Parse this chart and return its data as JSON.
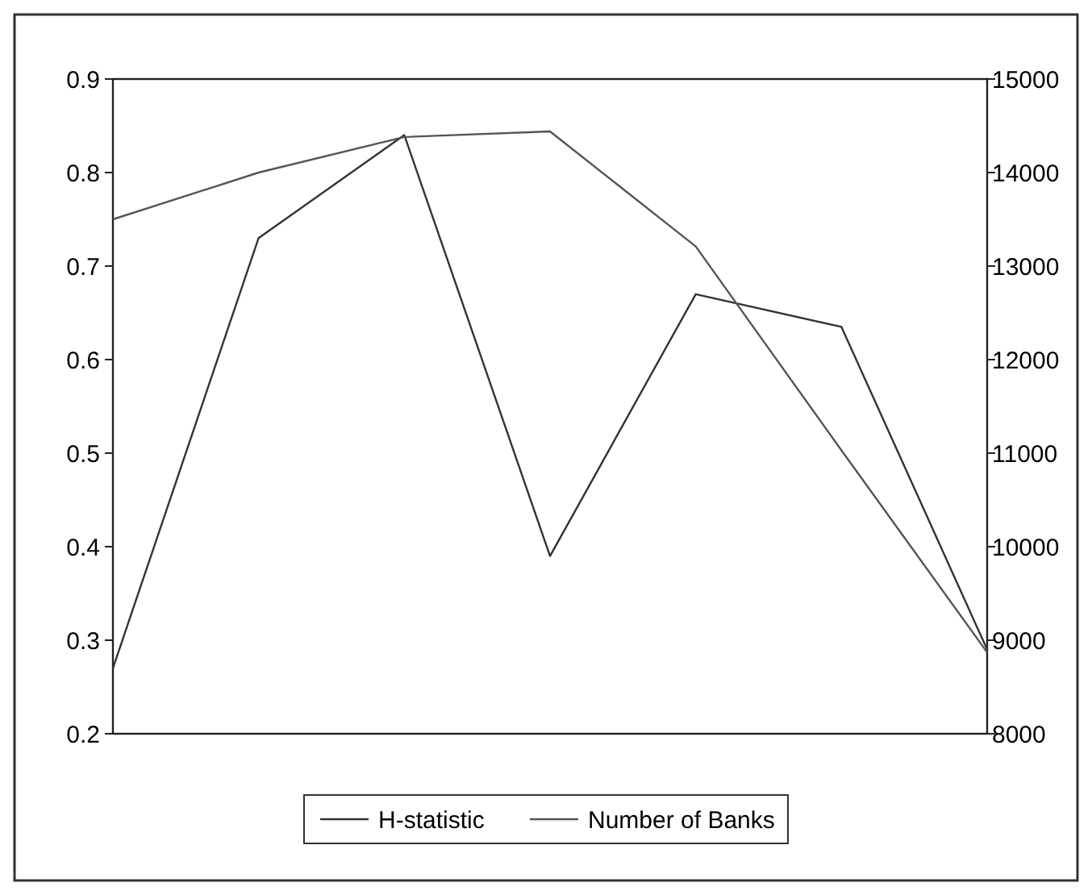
{
  "chart_data": {
    "type": "line",
    "categories": [
      null,
      null,
      null,
      null,
      null,
      null,
      null
    ],
    "series": [
      {
        "name": "H-statistic",
        "color": "#333333",
        "values": [
          0.27,
          0.73,
          0.84,
          0.39,
          0.67,
          0.635,
          0.29
        ]
      },
      {
        "name": "Number of Banks",
        "color": "#555555",
        "axis": "y2",
        "values": [
          13500,
          14000,
          14380,
          14440,
          13210,
          11030,
          8870
        ]
      }
    ],
    "ylim": [
      0.2,
      0.9
    ],
    "yticks": [
      0.2,
      0.3,
      0.4,
      0.5,
      0.6,
      0.7,
      0.8,
      0.9
    ],
    "y2lim": [
      8000,
      15000
    ],
    "y2ticks": [
      8000,
      9000,
      10000,
      11000,
      12000,
      13000,
      14000,
      15000
    ],
    "grid": false,
    "legend": "bottom",
    "marker": "none",
    "line_style": "solid"
  }
}
